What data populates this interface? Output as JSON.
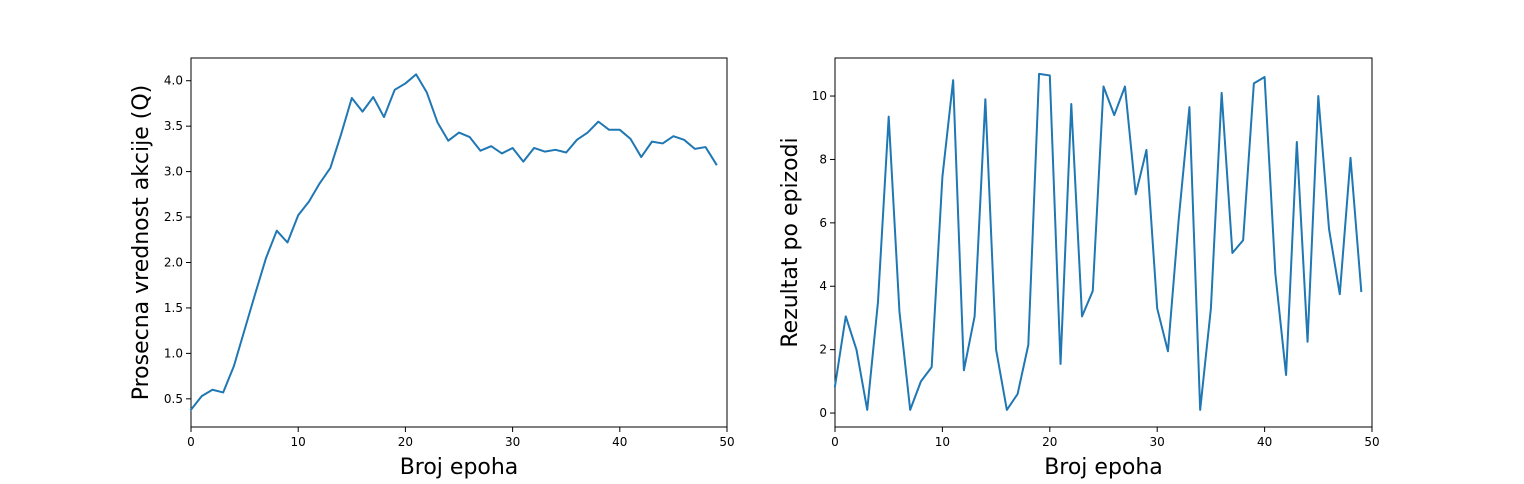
{
  "chart_data": [
    {
      "type": "line",
      "title": "",
      "xlabel": "Broj epoha",
      "ylabel": "Prosecna vrednost akcije (Q)",
      "xlim": [
        0,
        50
      ],
      "ylim": [
        0.19,
        4.25
      ],
      "xticks": [
        0,
        10,
        20,
        30,
        40,
        50
      ],
      "yticks": [
        0.5,
        1.0,
        1.5,
        2.0,
        2.5,
        3.0,
        3.5,
        4.0
      ],
      "xtick_labels": [
        "0",
        "10",
        "20",
        "30",
        "40",
        "50"
      ],
      "ytick_labels": [
        "0.5",
        "1.0",
        "1.5",
        "2.0",
        "2.5",
        "3.0",
        "3.5",
        "4.0"
      ],
      "grid": false,
      "color": "#1f77b4",
      "series": [
        {
          "x": [
            0,
            1,
            2,
            3,
            4,
            5,
            6,
            7,
            8,
            9,
            10,
            11,
            12,
            13,
            14,
            15,
            16,
            17,
            18,
            19,
            20,
            21,
            22,
            23,
            24,
            25,
            26,
            27,
            28,
            29,
            30,
            31,
            32,
            33,
            34,
            35,
            36,
            37,
            38,
            39,
            40,
            41,
            42,
            43,
            44,
            45,
            46,
            47,
            48,
            49
          ],
          "values": [
            0.38,
            0.53,
            0.6,
            0.57,
            0.86,
            1.26,
            1.66,
            2.05,
            2.35,
            2.22,
            2.52,
            2.67,
            2.87,
            3.04,
            3.41,
            3.81,
            3.66,
            3.82,
            3.6,
            3.9,
            3.97,
            4.07,
            3.87,
            3.54,
            3.34,
            3.43,
            3.38,
            3.23,
            3.28,
            3.2,
            3.26,
            3.11,
            3.26,
            3.22,
            3.24,
            3.21,
            3.35,
            3.43,
            3.55,
            3.46,
            3.46,
            3.36,
            3.16,
            3.33,
            3.31,
            3.39,
            3.35,
            3.25,
            3.27,
            3.08
          ]
        }
      ]
    },
    {
      "type": "line",
      "title": "",
      "xlabel": "Broj epoha",
      "ylabel": "Rezultat po epizodi",
      "xlim": [
        0,
        50
      ],
      "ylim": [
        -0.44,
        11.2
      ],
      "xticks": [
        0,
        10,
        20,
        30,
        40,
        50
      ],
      "yticks": [
        0,
        2,
        4,
        6,
        8,
        10
      ],
      "xtick_labels": [
        "0",
        "10",
        "20",
        "30",
        "40",
        "50"
      ],
      "ytick_labels": [
        "0",
        "2",
        "4",
        "6",
        "8",
        "10"
      ],
      "grid": false,
      "color": "#1f77b4",
      "series": [
        {
          "x": [
            0,
            1,
            2,
            3,
            4,
            5,
            6,
            7,
            8,
            9,
            10,
            11,
            12,
            13,
            14,
            15,
            16,
            17,
            18,
            19,
            20,
            21,
            22,
            23,
            24,
            25,
            26,
            27,
            28,
            29,
            30,
            31,
            32,
            33,
            34,
            35,
            36,
            37,
            38,
            39,
            40,
            41,
            42,
            43,
            44,
            45,
            46,
            47,
            48,
            49
          ],
          "values": [
            0.85,
            3.05,
            2.0,
            0.1,
            3.5,
            9.35,
            3.2,
            0.1,
            1.0,
            1.45,
            7.45,
            10.5,
            1.35,
            3.05,
            9.9,
            2.0,
            0.1,
            0.6,
            2.15,
            10.7,
            10.65,
            1.55,
            9.75,
            3.05,
            3.85,
            10.3,
            9.4,
            10.3,
            6.9,
            8.3,
            3.3,
            1.95,
            6.1,
            9.65,
            0.1,
            3.3,
            10.1,
            5.05,
            5.45,
            10.4,
            10.6,
            4.4,
            1.2,
            8.55,
            2.25,
            10.0,
            5.8,
            3.75,
            8.05,
            3.85
          ]
        }
      ]
    }
  ]
}
